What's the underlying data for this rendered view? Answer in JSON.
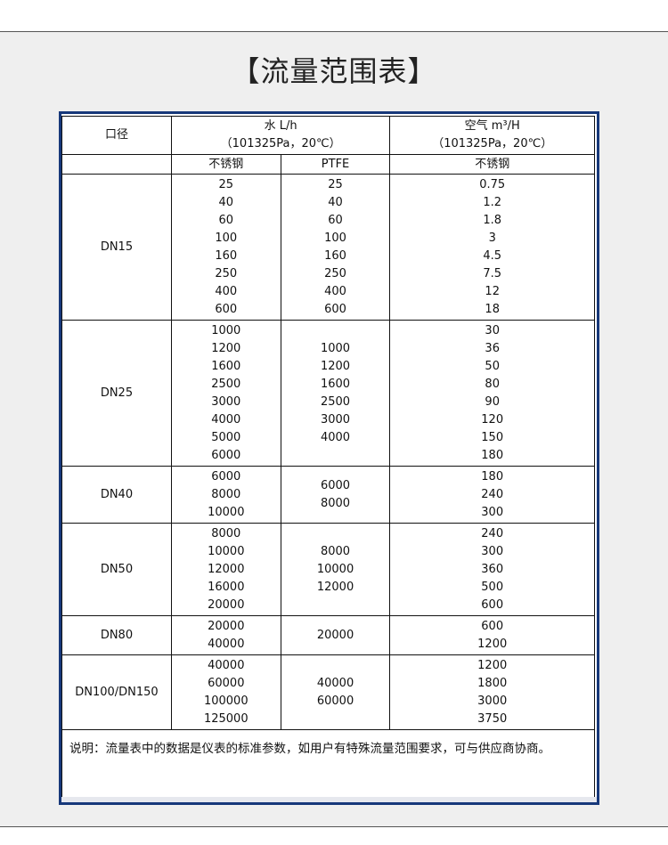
{
  "title": "【流量范围表】",
  "headers": {
    "caliber": "口径",
    "water": "水 L/h",
    "water_cond": "（101325Pa，20℃）",
    "air": "空气 m³/H",
    "air_cond": "（101325Pa，20℃）",
    "water_ss": "不锈钢",
    "water_ptfe": "PTFE",
    "air_ss": "不锈钢"
  },
  "rows": [
    {
      "dn": "DN15",
      "ss": [
        "25",
        "40",
        "60",
        "100",
        "160",
        "250",
        "400",
        "600"
      ],
      "ptfe": [
        "25",
        "40",
        "60",
        "100",
        "160",
        "250",
        "400",
        "600"
      ],
      "air": [
        "0.75",
        "1.2",
        "1.8",
        "3",
        "4.5",
        "7.5",
        "12",
        "18"
      ]
    },
    {
      "dn": "DN25",
      "ss": [
        "1000",
        "1200",
        "1600",
        "2500",
        "3000",
        "4000",
        "5000",
        "6000"
      ],
      "ptfe": [
        "1000",
        "1200",
        "1600",
        "2500",
        "3000",
        "4000"
      ],
      "air": [
        "30",
        "36",
        "50",
        "80",
        "90",
        "120",
        "150",
        "180"
      ]
    },
    {
      "dn": "DN40",
      "ss": [
        "6000",
        "8000",
        "10000"
      ],
      "ptfe": [
        "6000",
        "8000"
      ],
      "air": [
        "180",
        "240",
        "300"
      ]
    },
    {
      "dn": "DN50",
      "ss": [
        "8000",
        "10000",
        "12000",
        "16000",
        "20000"
      ],
      "ptfe": [
        "8000",
        "10000",
        "12000"
      ],
      "air": [
        "240",
        "300",
        "360",
        "500",
        "600"
      ]
    },
    {
      "dn": "DN80",
      "ss": [
        "20000",
        "40000"
      ],
      "ptfe": [
        "20000"
      ],
      "air": [
        "600",
        "1200"
      ]
    },
    {
      "dn": "DN100/DN150",
      "ss": [
        "40000",
        "60000",
        "100000",
        "125000"
      ],
      "ptfe": [
        "40000",
        "60000"
      ],
      "air": [
        "1200",
        "1800",
        "3000",
        "3750"
      ]
    }
  ],
  "note": "说明：流量表中的数据是仪表的标准参数，如用户有特殊流量范围要求，可与供应商协商。"
}
